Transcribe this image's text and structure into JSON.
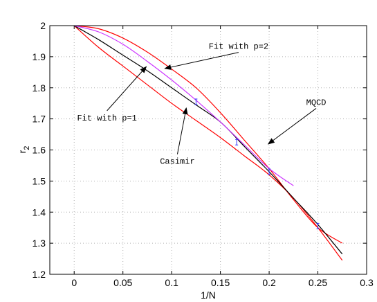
{
  "chart_data": {
    "type": "line",
    "title": "",
    "xlabel": "1/N",
    "ylabel": "r",
    "ylabel_subscript": "2",
    "xlim": [
      -0.025,
      0.3
    ],
    "ylim": [
      1.2,
      2.0
    ],
    "grid": true,
    "x_ticks": [
      "0",
      "0.05",
      "0.1",
      "0.15",
      "0.2",
      "0.25",
      "0.3"
    ],
    "y_ticks": [
      "1.2",
      "1.3",
      "1.4",
      "1.5",
      "1.6",
      "1.7",
      "1.8",
      "1.9",
      "2"
    ],
    "x_tick_values": [
      0,
      0.05,
      0.1,
      0.15,
      0.2,
      0.25,
      0.3
    ],
    "y_tick_values": [
      1.2,
      1.3,
      1.4,
      1.5,
      1.6,
      1.7,
      1.8,
      1.9,
      2.0
    ],
    "series": [
      {
        "color": "#ff0000",
        "x": [
          0,
          0.025,
          0.05,
          0.075,
          0.1,
          0.125,
          0.15,
          0.175,
          0.2,
          0.225,
          0.25,
          0.275
        ],
        "y": [
          2.0,
          1.99,
          1.96,
          1.915,
          1.86,
          1.8,
          1.72,
          1.63,
          1.54,
          1.44,
          1.35,
          1.3
        ]
      },
      {
        "color": "#ff0000",
        "x": [
          0,
          0.025,
          0.05,
          0.075,
          0.1,
          0.125,
          0.15,
          0.175,
          0.2,
          0.225,
          0.25,
          0.275
        ],
        "y": [
          2.0,
          1.93,
          1.87,
          1.81,
          1.75,
          1.695,
          1.64,
          1.58,
          1.52,
          1.445,
          1.35,
          1.245
        ]
      },
      {
        "color": "#000000",
        "x": [
          0,
          0.025,
          0.05,
          0.075,
          0.1,
          0.125,
          0.15,
          0.175,
          0.2,
          0.225,
          0.25,
          0.275
        ],
        "y": [
          2.0,
          1.955,
          1.905,
          1.855,
          1.8,
          1.745,
          1.69,
          1.61,
          1.53,
          1.445,
          1.36,
          1.265
        ]
      },
      {
        "color": "#cc33ff",
        "x": [
          0,
          0.025,
          0.05,
          0.075,
          0.1,
          0.125,
          0.15,
          0.175,
          0.2,
          0.225
        ],
        "y": [
          2.0,
          1.98,
          1.94,
          1.885,
          1.825,
          1.76,
          1.69,
          1.615,
          1.54,
          1.485
        ]
      }
    ],
    "data_points": {
      "color": "#3333ff",
      "x": [
        0.125,
        0.1667,
        0.2,
        0.25
      ],
      "y": [
        1.755,
        1.625,
        1.53,
        1.355
      ]
    },
    "annotations": [
      {
        "text": "Fit with p=2",
        "tx": 0.138,
        "ty": 1.925,
        "ax": 0.093,
        "ay": 1.862
      },
      {
        "text": "Fit with p=1",
        "tx": 0.003,
        "ty": 1.695,
        "ax": 0.074,
        "ay": 1.868
      },
      {
        "text": "MQCD",
        "tx": 0.238,
        "ty": 1.745,
        "ax": 0.199,
        "ay": 1.619
      },
      {
        "text": "Casimir",
        "tx": 0.088,
        "ty": 1.555,
        "ax": 0.115,
        "ay": 1.735
      }
    ]
  }
}
